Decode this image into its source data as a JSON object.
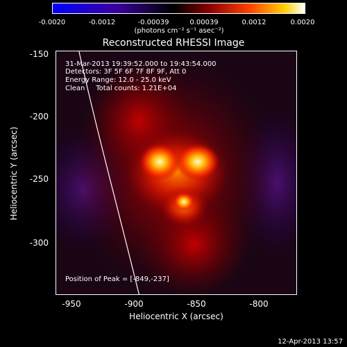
{
  "colorbar": {
    "ticks": [
      "-0.0020",
      "-0.0012",
      "-0.00039",
      "0.00039",
      "0.0012",
      "0.0020"
    ],
    "units": "(photons cm⁻² s⁻¹ asec⁻²)"
  },
  "title": "Reconstructed RHESSI Image",
  "annotations": {
    "time_range": "31-Mar-2013 19:39:52.000 to 19:43:54.000",
    "detectors": "Detectors: 3F 5F 6F 7F 8F 9F, Att 0",
    "energy": "Energy Range: 12.0 - 25.0 keV",
    "clean": "Clean     Total counts: 1.21E+04",
    "peak": "Position of Peak = [-849,-237]"
  },
  "axes": {
    "xlabel": "Heliocentric X (arcsec)",
    "ylabel": "Heliocentric Y (arcsec)",
    "xticks": [
      "-950",
      "-900",
      "-850",
      "-800"
    ],
    "yticks": [
      "-150",
      "-200",
      "-250",
      "-300"
    ]
  },
  "timestamp": "12-Apr-2013 13:57",
  "colors": {
    "bar_low": "#0000ff",
    "bar_mid": "#000000",
    "bar_high": "#ffffff"
  }
}
